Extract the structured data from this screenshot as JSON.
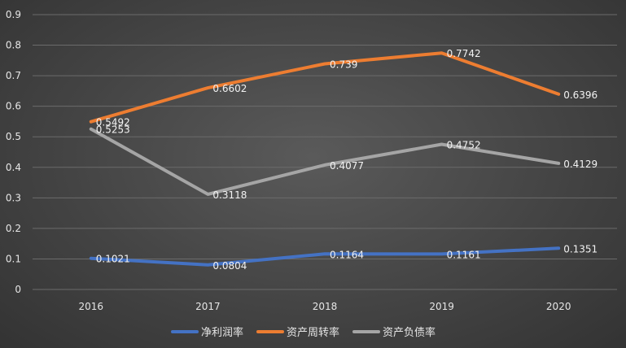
{
  "chart_data": {
    "type": "line",
    "title": "",
    "xlabel": "",
    "ylabel": "",
    "categories": [
      "2016",
      "2017",
      "2018",
      "2019",
      "2020"
    ],
    "ylim": [
      0,
      0.9
    ],
    "yticks": [
      "0",
      "0.1",
      "0.2",
      "0.3",
      "0.4",
      "0.5",
      "0.6",
      "0.7",
      "0.8",
      "0.9"
    ],
    "grid": true,
    "legend_position": "bottom",
    "series": [
      {
        "name": "净利润率",
        "color": "#4472C4",
        "values": [
          0.1021,
          0.0804,
          0.1164,
          0.1161,
          0.1351
        ],
        "labels": [
          "0.1021",
          "0.0804",
          "0.1164",
          "0.1161",
          "0.1351"
        ]
      },
      {
        "name": "资产周转率",
        "color": "#ED7D31",
        "values": [
          0.5492,
          0.6602,
          0.739,
          0.7742,
          0.6396
        ],
        "labels": [
          "0.5492",
          "0.6602",
          "0.739",
          "0.7742",
          "0.6396"
        ]
      },
      {
        "name": "资产负债率",
        "color": "#A5A5A5",
        "values": [
          0.5253,
          0.3118,
          0.4077,
          0.4752,
          0.4129
        ],
        "labels": [
          "0.5253",
          "0.3118",
          "0.4077",
          "0.4752",
          "0.4129"
        ]
      }
    ]
  }
}
